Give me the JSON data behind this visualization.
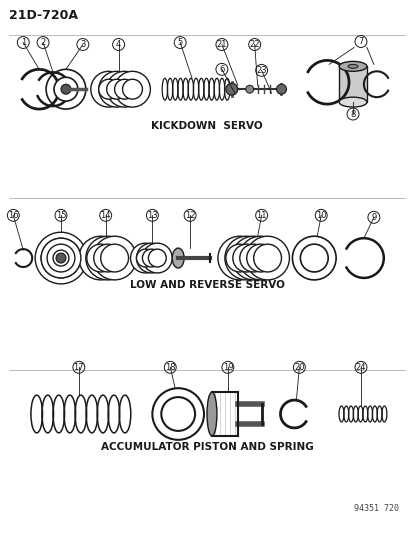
{
  "title": "21D-720A",
  "section1_label": "KICKDOWN  SERVO",
  "section2_label": "LOW AND REVERSE SERVO",
  "section3_label": "ACCUMULATOR PISTON AND SPRING",
  "footer": "94351 720",
  "bg_color": "#ffffff",
  "line_color": "#1a1a1a",
  "text_color": "#1a1a1a",
  "fig_width": 4.14,
  "fig_height": 5.33,
  "dpi": 100
}
